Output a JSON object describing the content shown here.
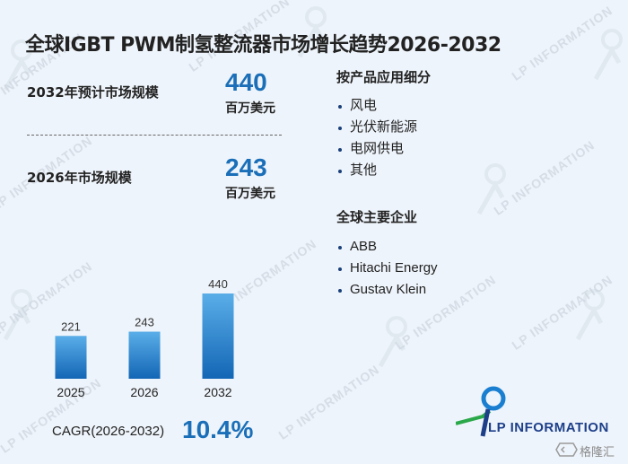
{
  "title": "全球IGBT PWM制氢整流器市场增长趋势2026-2032",
  "stats": {
    "forecast_label": "2032年预计市场规模",
    "forecast_value": "440",
    "forecast_unit": "百万美元",
    "base_label": "2026年市场规模",
    "base_value": "243",
    "base_unit": "百万美元"
  },
  "segments": {
    "title": "按产品应用细分",
    "items": [
      "风电",
      "光伏新能源",
      "电网供电",
      "其他"
    ]
  },
  "companies": {
    "title": "全球主要企业",
    "items": [
      "ABB",
      "Hitachi Energy",
      "Gustav Klein"
    ]
  },
  "cagr": {
    "label": "CAGR(2026-2032)",
    "value": "10.4%"
  },
  "logo": {
    "text": "LP INFORMATION",
    "watermark": "LP INFORMATION"
  },
  "corner_logo": {
    "text": "格隆汇"
  },
  "colors": {
    "accent": "#1a6fb8",
    "bar_top": "#5aaee8",
    "bar_bottom": "#1366b5",
    "background": "#eef4fb"
  },
  "chart_data": {
    "type": "bar",
    "categories": [
      "2025",
      "2026",
      "2032"
    ],
    "values": [
      221,
      243,
      440
    ],
    "title": "",
    "xlabel": "",
    "ylabel": "",
    "ylim": [
      0,
      440
    ],
    "grid": false
  }
}
